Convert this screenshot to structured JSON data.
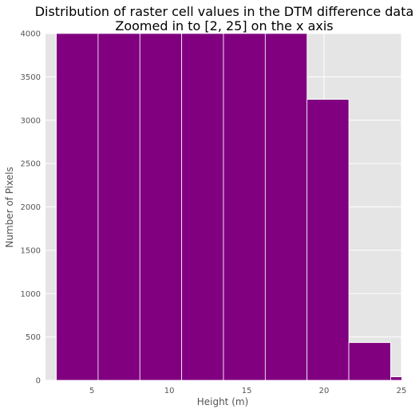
{
  "chart_data": {
    "type": "bar",
    "title": "Distribution of raster cell values in the DTM difference data",
    "subtitle": "Zoomed in to [2, 25] on the x axis",
    "xlabel": "Height (m)",
    "ylabel": "Number of Pixels",
    "xlim": [
      2,
      25
    ],
    "ylim": [
      0,
      4000
    ],
    "x_ticks": [
      5,
      10,
      15,
      20,
      25
    ],
    "y_ticks": [
      0,
      500,
      1000,
      1500,
      2000,
      2500,
      3000,
      3500,
      4000
    ],
    "grid": true,
    "bins": [
      {
        "x0": 2.7,
        "x1": 5.4,
        "value": 4000
      },
      {
        "x0": 5.4,
        "x1": 8.1,
        "value": 4000
      },
      {
        "x0": 8.1,
        "x1": 10.8,
        "value": 4000
      },
      {
        "x0": 10.8,
        "x1": 13.5,
        "value": 4000
      },
      {
        "x0": 13.5,
        "x1": 16.2,
        "value": 4000
      },
      {
        "x0": 16.2,
        "x1": 18.9,
        "value": 4000
      },
      {
        "x0": 18.9,
        "x1": 21.6,
        "value": 3240
      },
      {
        "x0": 21.6,
        "x1": 24.3,
        "value": 435
      },
      {
        "x0": 24.3,
        "x1": 27.0,
        "value": 40
      }
    ],
    "bar_color": "#800080",
    "background_color": "#e5e5e5",
    "grid_color": "#ffffff"
  }
}
